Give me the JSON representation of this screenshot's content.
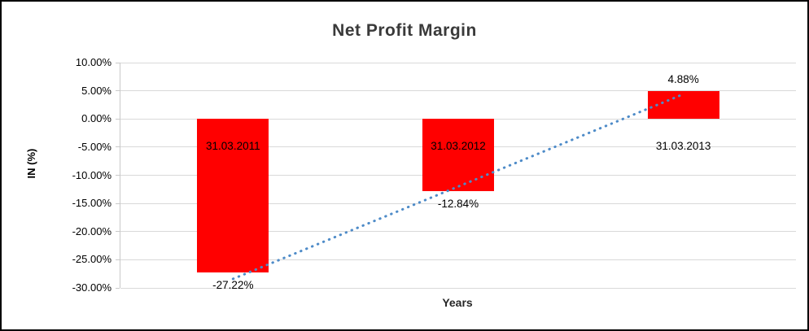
{
  "chart_data": {
    "type": "bar",
    "title": "Net Profit Margin",
    "xlabel": "Years",
    "ylabel": "IN (%)",
    "categories": [
      "31.03.2011",
      "31.03.2012",
      "31.03.2013"
    ],
    "values": [
      -27.22,
      -12.84,
      4.88
    ],
    "value_labels": [
      "-27.22%",
      "-12.84%",
      "4.88%"
    ],
    "ylim": [
      -30,
      10
    ],
    "ytick_step": 5,
    "ytick_labels": [
      "10.00%",
      "5.00%",
      "0.00%",
      "-5.00%",
      "-10.00%",
      "-15.00%",
      "-20.00%",
      "-25.00%",
      "-30.00%"
    ],
    "grid": true,
    "legend": false,
    "bar_color": "#ff0000",
    "gridline_color": "#d9d9d9",
    "axis_color": "#c9c9c9",
    "trendline": {
      "style": "dotted",
      "color": "#4e8bc8",
      "start": {
        "category_index": 0,
        "value": -28.4
      },
      "end": {
        "category_index": 2,
        "value": 4.4
      }
    }
  }
}
